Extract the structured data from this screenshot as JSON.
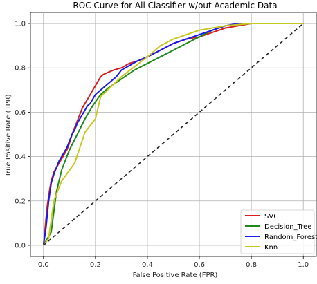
{
  "chart_data": {
    "type": "line",
    "title": "ROC Curve for All Classifier w/out Academic Data",
    "xlabel": "False Positive Rate (FPR)",
    "ylabel": "True Positive Rate (TPR)",
    "xlim": [
      -0.05,
      1.05
    ],
    "ylim": [
      -0.05,
      1.05
    ],
    "x_ticks": [
      "0.0",
      "0.2",
      "0.4",
      "0.6",
      "0.8",
      "1.0"
    ],
    "y_ticks": [
      "0.0",
      "0.2",
      "0.4",
      "0.6",
      "0.8",
      "1.0"
    ],
    "grid": true,
    "legend_position": "lower-right",
    "series": [
      {
        "name": "SVC",
        "color": "#d62020",
        "x": [
          0.0,
          0.005,
          0.01,
          0.015,
          0.02,
          0.025,
          0.03,
          0.04,
          0.05,
          0.06,
          0.07,
          0.08,
          0.09,
          0.1,
          0.11,
          0.12,
          0.13,
          0.14,
          0.15,
          0.16,
          0.17,
          0.18,
          0.19,
          0.2,
          0.21,
          0.22,
          0.23,
          0.25,
          0.27,
          0.3,
          0.33,
          0.36,
          0.4,
          0.45,
          0.5,
          0.55,
          0.6,
          0.65,
          0.7,
          0.75,
          0.8,
          0.85,
          0.9,
          1.0
        ],
        "y": [
          0.0,
          0.06,
          0.12,
          0.18,
          0.22,
          0.26,
          0.29,
          0.33,
          0.35,
          0.37,
          0.39,
          0.41,
          0.43,
          0.46,
          0.5,
          0.53,
          0.56,
          0.59,
          0.62,
          0.64,
          0.66,
          0.68,
          0.7,
          0.72,
          0.74,
          0.76,
          0.77,
          0.78,
          0.79,
          0.8,
          0.82,
          0.83,
          0.85,
          0.88,
          0.91,
          0.93,
          0.94,
          0.96,
          0.98,
          0.99,
          1.0,
          1.0,
          1.0,
          1.0
        ]
      },
      {
        "name": "Decision_Tree",
        "color": "#1e8a1e",
        "x": [
          0.0,
          0.03,
          0.05,
          0.07,
          0.1,
          0.13,
          0.16,
          0.19,
          0.22,
          0.25,
          0.3,
          0.35,
          0.4,
          0.45,
          0.5,
          0.55,
          0.6,
          0.65,
          0.7,
          0.8,
          0.9,
          1.0
        ],
        "y": [
          0.0,
          0.06,
          0.24,
          0.34,
          0.43,
          0.5,
          0.57,
          0.63,
          0.68,
          0.71,
          0.75,
          0.79,
          0.82,
          0.85,
          0.88,
          0.91,
          0.94,
          0.97,
          0.99,
          1.0,
          1.0,
          1.0
        ]
      },
      {
        "name": "Random_Forest",
        "color": "#1a1aee",
        "x": [
          0.0,
          0.005,
          0.01,
          0.015,
          0.02,
          0.025,
          0.03,
          0.04,
          0.05,
          0.06,
          0.07,
          0.08,
          0.09,
          0.1,
          0.11,
          0.12,
          0.13,
          0.14,
          0.15,
          0.16,
          0.17,
          0.18,
          0.19,
          0.2,
          0.22,
          0.24,
          0.26,
          0.28,
          0.3,
          0.33,
          0.36,
          0.4,
          0.45,
          0.5,
          0.55,
          0.6,
          0.65,
          0.7,
          0.75,
          0.8,
          0.9,
          1.0
        ],
        "y": [
          0.0,
          0.04,
          0.08,
          0.14,
          0.2,
          0.24,
          0.28,
          0.32,
          0.35,
          0.38,
          0.4,
          0.42,
          0.44,
          0.47,
          0.5,
          0.52,
          0.55,
          0.57,
          0.59,
          0.61,
          0.63,
          0.64,
          0.66,
          0.68,
          0.7,
          0.72,
          0.74,
          0.76,
          0.79,
          0.81,
          0.83,
          0.85,
          0.88,
          0.91,
          0.93,
          0.95,
          0.97,
          0.99,
          1.0,
          1.0,
          1.0,
          1.0
        ]
      },
      {
        "name": "Knn",
        "color": "#c8c81e",
        "x": [
          0.0,
          0.02,
          0.04,
          0.07,
          0.12,
          0.16,
          0.2,
          0.22,
          0.3,
          0.4,
          0.45,
          0.5,
          0.6,
          0.7,
          0.8,
          0.9,
          1.0
        ],
        "y": [
          0.0,
          0.03,
          0.2,
          0.29,
          0.37,
          0.51,
          0.57,
          0.67,
          0.76,
          0.85,
          0.9,
          0.93,
          0.97,
          0.99,
          1.0,
          1.0,
          1.0
        ]
      },
      {
        "name": "",
        "color": "#222222",
        "dashed": true,
        "x": [
          0.0,
          1.0
        ],
        "y": [
          0.0,
          1.0
        ]
      }
    ],
    "legend": [
      "SVC",
      "Decision_Tree",
      "Random_Forest",
      "Knn"
    ]
  }
}
